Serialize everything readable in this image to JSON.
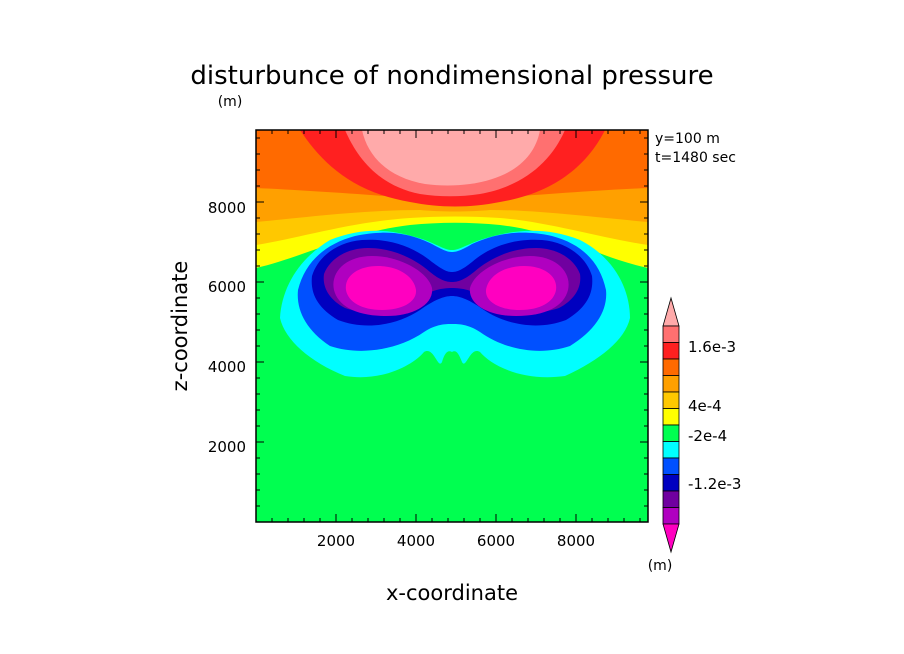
{
  "chart_data": {
    "type": "heatmap",
    "title": "disturbunce of nondimensional pressure",
    "unit_label": "(m)",
    "xlabel": "x-coordinate",
    "ylabel": "z-coordinate",
    "xlim": [
      0,
      9800
    ],
    "ylim": [
      0,
      9800
    ],
    "x_ticks": [
      2000,
      4000,
      6000,
      8000
    ],
    "y_ticks": [
      2000,
      4000,
      6000,
      8000
    ],
    "x_tick_labels": [
      "2000",
      "4000",
      "6000",
      "8000"
    ],
    "y_tick_labels": [
      "2000",
      "4000",
      "6000",
      "8000"
    ],
    "annotations": [
      "y=100 m",
      "t=1480 sec"
    ],
    "colorbar": {
      "levels_top_to_bottom": [
        {
          "color": "#ffaaaa"
        },
        {
          "color": "#ff7070",
          "label": "1.6e-3"
        },
        {
          "color": "#ff2020"
        },
        {
          "color": "#ff6a00"
        },
        {
          "color": "#ffa000"
        },
        {
          "color": "#ffc800",
          "label": "4e-4"
        },
        {
          "color": "#ffff00"
        },
        {
          "color": "#00ff50",
          "label": "-2e-4"
        },
        {
          "color": "#00ffff"
        },
        {
          "color": "#0050ff"
        },
        {
          "color": "#0000c0",
          "label": "-1.2e-3"
        },
        {
          "color": "#7000a0"
        },
        {
          "color": "#b000c0"
        },
        {
          "color": "#ff00c0"
        }
      ],
      "unit_label": "(m)"
    },
    "field_description": {
      "background_level": "-2e-4 to 0 (green)",
      "top_positive_max_near": {
        "x": 5000,
        "z": 9800
      },
      "negative_min_centers": [
        {
          "x": 3400,
          "z": 5800
        },
        {
          "x": 6700,
          "z": 5800
        }
      ]
    }
  }
}
